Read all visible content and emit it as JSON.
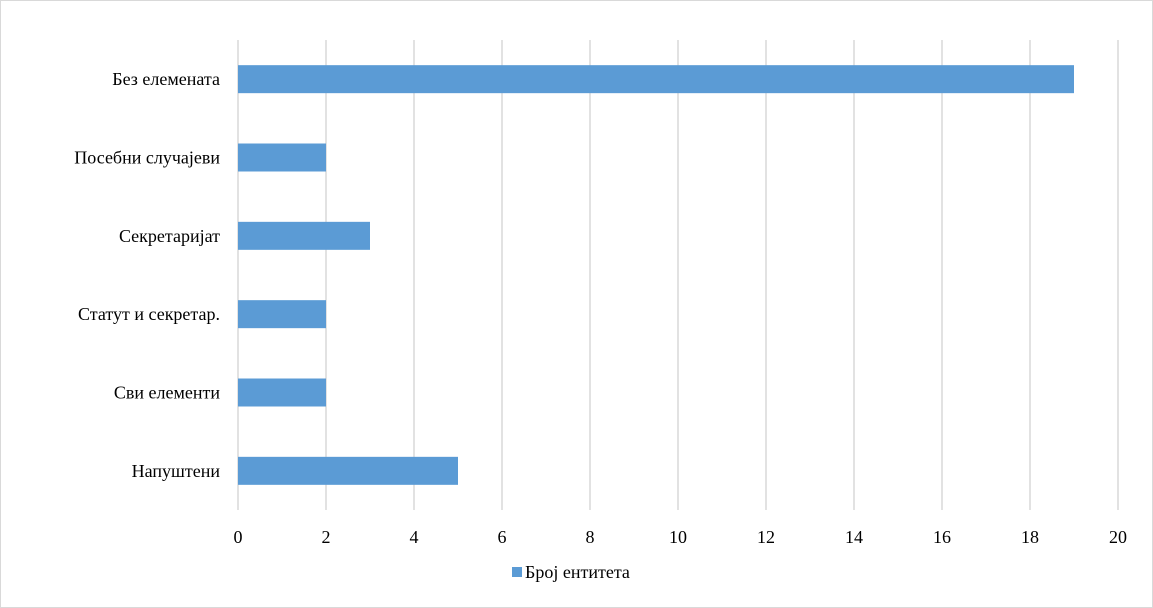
{
  "chart_data": {
    "type": "bar",
    "orientation": "horizontal",
    "categories": [
      "Без елемената",
      "Посебни случајеви",
      "Секретаријат",
      "Статут и секретар.",
      "Сви елементи",
      "Напуштени"
    ],
    "series": [
      {
        "name": "Број ентитета",
        "values": [
          19,
          2,
          3,
          2,
          2,
          5
        ],
        "color": "#5b9bd5"
      }
    ],
    "xticks": [
      "0",
      "2",
      "4",
      "6",
      "8",
      "10",
      "12",
      "14",
      "16",
      "18",
      "20"
    ],
    "xlim": [
      0,
      20
    ],
    "grid": "vertical",
    "legend": "bottom-center",
    "gridline_color": "#d9d9d9",
    "title": "",
    "xlabel": "",
    "ylabel": ""
  }
}
